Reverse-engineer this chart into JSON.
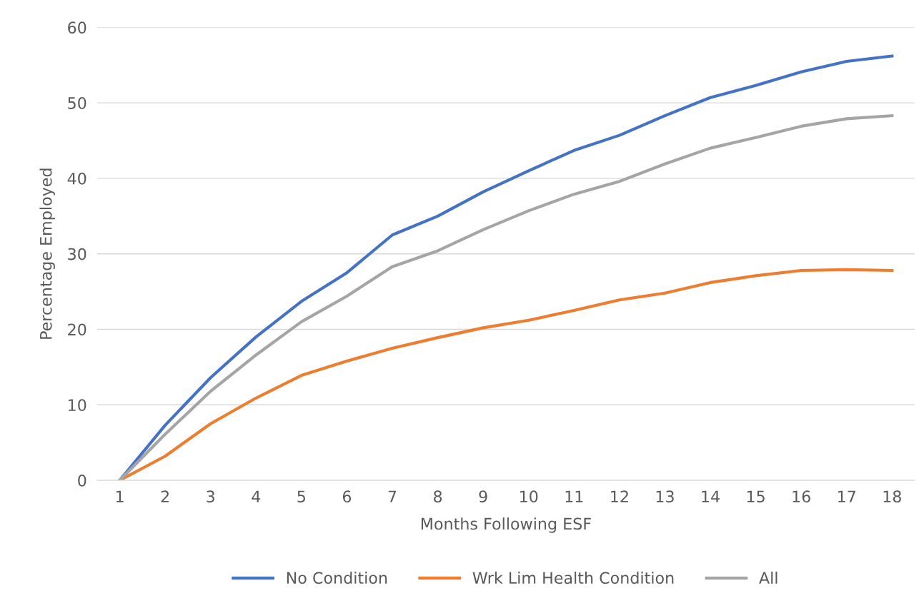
{
  "chart_data": {
    "type": "line",
    "xlabel": "Months Following ESF",
    "ylabel": "Percentage Employed",
    "categories": [
      "1",
      "2",
      "3",
      "4",
      "5",
      "6",
      "7",
      "8",
      "9",
      "10",
      "11",
      "12",
      "13",
      "14",
      "15",
      "16",
      "17",
      "18"
    ],
    "series": [
      {
        "name": "No Condition",
        "color": "#4472c4",
        "values": [
          0,
          7.3,
          13.6,
          19.0,
          23.7,
          27.5,
          32.5,
          35.0,
          38.2,
          41.0,
          43.7,
          45.7,
          48.3,
          50.7,
          52.3,
          54.1,
          55.5,
          56.2
        ]
      },
      {
        "name": "Wrk Lim Health Condition",
        "color": "#ed7d31",
        "values": [
          0,
          3.2,
          7.5,
          10.9,
          13.9,
          15.8,
          17.5,
          18.9,
          20.2,
          21.2,
          22.5,
          23.9,
          24.8,
          26.2,
          27.1,
          27.8,
          27.9,
          27.8
        ]
      },
      {
        "name": "All",
        "color": "#a5a5a5",
        "values": [
          0,
          6.1,
          11.8,
          16.6,
          21.0,
          24.4,
          28.3,
          30.4,
          33.2,
          35.7,
          37.9,
          39.6,
          41.9,
          44.0,
          45.4,
          46.9,
          47.9,
          48.3
        ]
      }
    ],
    "ylim": [
      0,
      60
    ],
    "yticks": [
      0,
      10,
      20,
      30,
      40,
      50,
      60
    ],
    "grid": "y",
    "legend": "bottom",
    "marker": "none",
    "line_style": "solid"
  }
}
